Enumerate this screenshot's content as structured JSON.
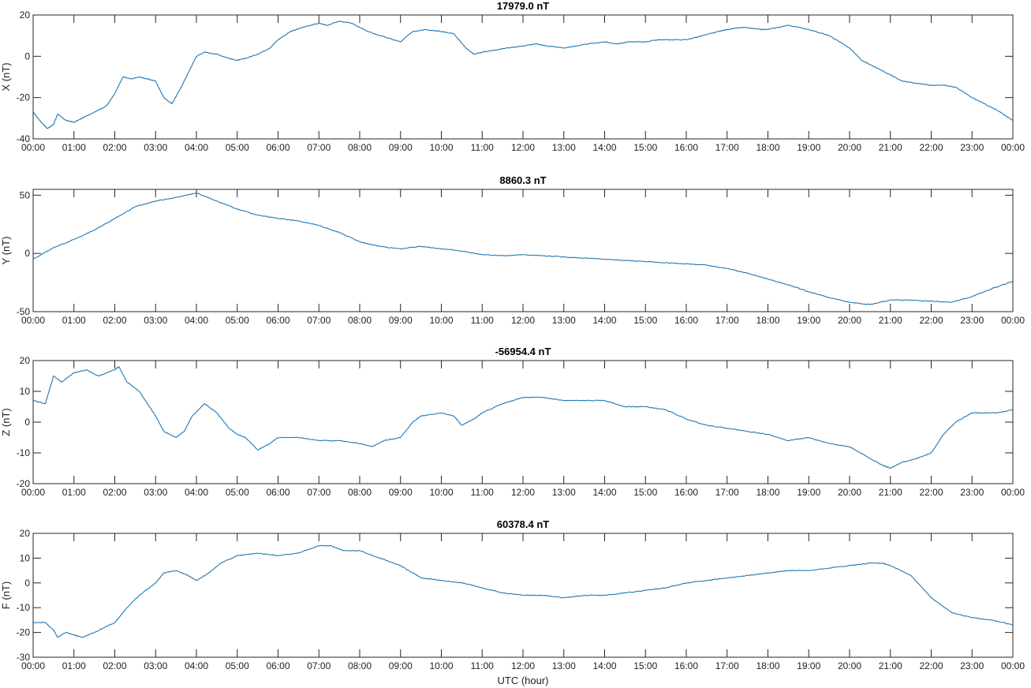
{
  "chart_data": [
    {
      "type": "line",
      "title": "17979.0 nT",
      "ylabel": "X (nT)",
      "xlabel": "",
      "ylim": [
        -40,
        20
      ],
      "yticks": [
        -40,
        -20,
        0,
        20
      ],
      "xlim": [
        0,
        24
      ],
      "xtick_labels": [
        "00:00",
        "01:00",
        "02:00",
        "03:00",
        "04:00",
        "05:00",
        "06:00",
        "07:00",
        "08:00",
        "09:00",
        "10:00",
        "11:00",
        "12:00",
        "13:00",
        "14:00",
        "15:00",
        "16:00",
        "17:00",
        "18:00",
        "19:00",
        "20:00",
        "21:00",
        "22:00",
        "23:00",
        "00:00"
      ],
      "series": [
        {
          "color": "#1f77b4",
          "x": [
            0,
            0.2,
            0.35,
            0.5,
            0.6,
            0.8,
            1.0,
            1.2,
            1.5,
            1.8,
            2.0,
            2.2,
            2.4,
            2.6,
            2.8,
            3.0,
            3.2,
            3.4,
            3.6,
            3.8,
            4.0,
            4.2,
            4.5,
            4.8,
            5.0,
            5.2,
            5.5,
            5.8,
            6.0,
            6.3,
            6.6,
            7.0,
            7.2,
            7.5,
            7.8,
            8.0,
            8.2,
            8.5,
            9.0,
            9.3,
            9.6,
            10.0,
            10.3,
            10.6,
            10.8,
            11.0,
            11.3,
            11.6,
            12.0,
            12.3,
            12.6,
            13.0,
            13.3,
            13.6,
            14.0,
            14.3,
            14.6,
            15.0,
            15.3,
            15.6,
            16.0,
            16.4,
            16.8,
            17.0,
            17.4,
            17.8,
            18.0,
            18.5,
            19.0,
            19.5,
            20.0,
            20.3,
            20.6,
            21.0,
            21.3,
            21.6,
            22.0,
            22.3,
            22.6,
            23.0,
            23.3,
            23.6,
            24.0
          ],
          "y": [
            -27,
            -32,
            -35,
            -33,
            -28,
            -31,
            -32,
            -30,
            -27,
            -24,
            -18,
            -10,
            -11,
            -10,
            -11,
            -12,
            -20,
            -23,
            -16,
            -8,
            0,
            2,
            1,
            -1,
            -2,
            -1,
            1,
            4,
            8,
            12,
            14,
            16,
            15,
            17,
            16,
            14,
            12,
            10,
            7,
            12,
            13,
            12,
            11,
            4,
            1,
            2,
            3,
            4,
            5,
            6,
            5,
            4,
            5,
            6,
            7,
            6,
            7,
            7,
            8,
            8,
            8,
            10,
            12,
            13,
            14,
            13,
            13,
            15,
            13,
            10,
            4,
            -2,
            -5,
            -9,
            -12,
            -13,
            -14,
            -14,
            -15,
            -20,
            -23,
            -26,
            -31
          ]
        }
      ]
    },
    {
      "type": "line",
      "title": "8860.3 nT",
      "ylabel": "Y (nT)",
      "xlabel": "",
      "ylim": [
        -50,
        55
      ],
      "yticks": [
        -50,
        0,
        50
      ],
      "xlim": [
        0,
        24
      ],
      "xtick_labels": [
        "00:00",
        "01:00",
        "02:00",
        "03:00",
        "04:00",
        "05:00",
        "06:00",
        "07:00",
        "08:00",
        "09:00",
        "10:00",
        "11:00",
        "12:00",
        "13:00",
        "14:00",
        "15:00",
        "16:00",
        "17:00",
        "18:00",
        "19:00",
        "20:00",
        "21:00",
        "22:00",
        "23:00",
        "00:00"
      ],
      "series": [
        {
          "color": "#1f77b4",
          "x": [
            0,
            0.5,
            1.0,
            1.5,
            2.0,
            2.5,
            3.0,
            3.5,
            4.0,
            4.5,
            5.0,
            5.5,
            6.0,
            6.5,
            7.0,
            7.5,
            8.0,
            8.5,
            9.0,
            9.5,
            10.0,
            10.5,
            11.0,
            11.5,
            12.0,
            12.5,
            13.0,
            13.5,
            14.0,
            14.5,
            15.0,
            15.5,
            16.0,
            16.5,
            17.0,
            17.5,
            18.0,
            18.5,
            19.0,
            19.5,
            20.0,
            20.5,
            21.0,
            21.5,
            22.0,
            22.5,
            23.0,
            23.5,
            24.0
          ],
          "y": [
            -5,
            5,
            12,
            20,
            30,
            40,
            45,
            48,
            52,
            45,
            38,
            33,
            30,
            28,
            24,
            18,
            10,
            6,
            4,
            6,
            4,
            2,
            -1,
            -2,
            -1,
            -2,
            -3,
            -4,
            -5,
            -6,
            -7,
            -8,
            -9,
            -10,
            -13,
            -17,
            -22,
            -27,
            -33,
            -38,
            -42,
            -44,
            -40,
            -40,
            -41,
            -42,
            -37,
            -30,
            -24
          ]
        }
      ]
    },
    {
      "type": "line",
      "title": "-56954.4 nT",
      "ylabel": "Z (nT)",
      "xlabel": "",
      "ylim": [
        -20,
        20
      ],
      "yticks": [
        -20,
        -10,
        0,
        10,
        20
      ],
      "xlim": [
        0,
        24
      ],
      "xtick_labels": [
        "00:00",
        "01:00",
        "02:00",
        "03:00",
        "04:00",
        "05:00",
        "06:00",
        "07:00",
        "08:00",
        "09:00",
        "10:00",
        "11:00",
        "12:00",
        "13:00",
        "14:00",
        "15:00",
        "16:00",
        "17:00",
        "18:00",
        "19:00",
        "20:00",
        "21:00",
        "22:00",
        "23:00",
        "00:00"
      ],
      "series": [
        {
          "color": "#1f77b4",
          "x": [
            0,
            0.3,
            0.5,
            0.7,
            1.0,
            1.3,
            1.6,
            2.0,
            2.1,
            2.3,
            2.6,
            3.0,
            3.2,
            3.5,
            3.7,
            3.9,
            4.2,
            4.5,
            4.8,
            5.0,
            5.2,
            5.5,
            5.8,
            6.0,
            6.5,
            7.0,
            7.5,
            8.0,
            8.3,
            8.6,
            9.0,
            9.3,
            9.5,
            10.0,
            10.3,
            10.5,
            10.8,
            11.0,
            11.5,
            12.0,
            12.5,
            13.0,
            13.5,
            14.0,
            14.5,
            15.0,
            15.5,
            16.0,
            16.5,
            17.0,
            17.5,
            18.0,
            18.5,
            19.0,
            19.5,
            20.0,
            20.4,
            20.8,
            21.0,
            21.3,
            21.6,
            22.0,
            22.3,
            22.6,
            23.0,
            23.3,
            23.6,
            24.0
          ],
          "y": [
            7,
            6,
            15,
            13,
            16,
            17,
            15,
            17,
            18,
            13,
            10,
            2,
            -3,
            -5,
            -3,
            2,
            6,
            3,
            -2,
            -4,
            -5,
            -9,
            -7,
            -5,
            -5,
            -6,
            -6,
            -7,
            -8,
            -6,
            -5,
            0,
            2,
            3,
            2,
            -1,
            1,
            3,
            6,
            8,
            8,
            7,
            7,
            7,
            5,
            5,
            4,
            1,
            -1,
            -2,
            -3,
            -4,
            -6,
            -5,
            -7,
            -8,
            -11,
            -14,
            -15,
            -13,
            -12,
            -10,
            -4,
            0,
            3,
            3,
            3,
            4
          ]
        }
      ]
    },
    {
      "type": "line",
      "title": "60378.4 nT",
      "ylabel": "F (nT)",
      "xlabel": "UTC (hour)",
      "ylim": [
        -30,
        20
      ],
      "yticks": [
        -30,
        -20,
        -10,
        0,
        10,
        20
      ],
      "xlim": [
        0,
        24
      ],
      "xtick_labels": [
        "00:00",
        "01:00",
        "02:00",
        "03:00",
        "04:00",
        "05:00",
        "06:00",
        "07:00",
        "08:00",
        "09:00",
        "10:00",
        "11:00",
        "12:00",
        "13:00",
        "14:00",
        "15:00",
        "16:00",
        "17:00",
        "18:00",
        "19:00",
        "20:00",
        "21:00",
        "22:00",
        "23:00",
        "00:00"
      ],
      "series": [
        {
          "color": "#1f77b4",
          "x": [
            0,
            0.3,
            0.5,
            0.6,
            0.8,
            1.0,
            1.2,
            1.5,
            2.0,
            2.3,
            2.6,
            3.0,
            3.2,
            3.5,
            3.8,
            4.0,
            4.3,
            4.6,
            5.0,
            5.5,
            6.0,
            6.5,
            7.0,
            7.3,
            7.6,
            8.0,
            8.5,
            9.0,
            9.5,
            10.0,
            10.5,
            11.0,
            11.5,
            12.0,
            12.5,
            13.0,
            13.5,
            14.0,
            14.5,
            15.0,
            15.5,
            16.0,
            16.5,
            17.0,
            17.5,
            18.0,
            18.5,
            19.0,
            19.5,
            20.0,
            20.5,
            20.8,
            21.0,
            21.5,
            22.0,
            22.5,
            23.0,
            23.5,
            24.0
          ],
          "y": [
            -16,
            -16,
            -19,
            -22,
            -20,
            -21,
            -22,
            -20,
            -16,
            -10,
            -5,
            0,
            4,
            5,
            3,
            1,
            4,
            8,
            11,
            12,
            11,
            12,
            15,
            15,
            13,
            13,
            10,
            7,
            2,
            1,
            0,
            -2,
            -4,
            -5,
            -5,
            -6,
            -5,
            -5,
            -4,
            -3,
            -2,
            0,
            1,
            2,
            3,
            4,
            5,
            5,
            6,
            7,
            8,
            8,
            7,
            3,
            -6,
            -12,
            -14,
            -15,
            -17
          ]
        }
      ]
    }
  ]
}
